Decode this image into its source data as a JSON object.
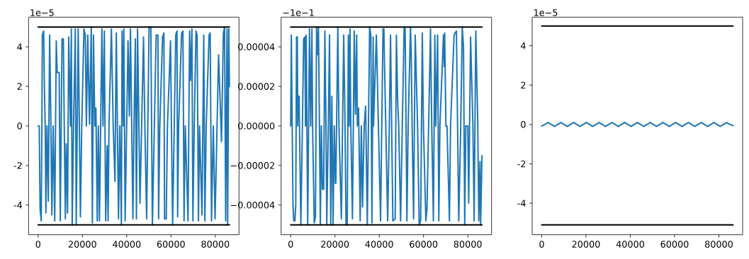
{
  "chart_data": [
    {
      "type": "line",
      "xlim": [
        -4320,
        90720
      ],
      "ylim": [
        -5.5,
        5.5
      ],
      "xticks": [
        0,
        20000,
        40000,
        60000,
        80000
      ],
      "yticks": [
        -4,
        -2,
        0,
        2,
        4
      ],
      "annotations": [
        "1e−5"
      ],
      "series": [
        {
          "color": "#1f77b4",
          "x": [
            0,
            500,
            900,
            1400,
            1700,
            1900,
            2500,
            2800,
            3200,
            3500,
            4000,
            4600,
            5200,
            5700,
            6200,
            6800,
            7500,
            8200,
            8600,
            9500,
            10000,
            10800,
            11400,
            11800,
            12300,
            12700,
            13300,
            13800,
            14600,
            15000,
            15400,
            16000,
            16800,
            17200,
            18100,
            19100,
            19700,
            20700,
            21300,
            21800,
            22400,
            23200,
            24000,
            24500,
            25000,
            25600,
            26100,
            26700,
            27200,
            27700,
            28800,
            29300,
            29900,
            30500,
            31200,
            31600,
            32000,
            33100,
            33900,
            34700,
            35300,
            36300,
            36900,
            37600,
            37900,
            38500,
            38700,
            39300,
            40600,
            41200,
            41700,
            42800,
            43300,
            43900,
            44400,
            44900,
            46000,
            47600,
            48200,
            49000,
            50100,
            50900,
            51600,
            53300,
            54100,
            54400,
            54950,
            56200,
            56800,
            57100,
            57850,
            58400,
            59800,
            60200,
            60750,
            62150,
            62700,
            63000,
            63450,
            64800,
            65400,
            65900,
            66450,
            67700,
            68400,
            68800,
            69450,
            69900,
            70500,
            71300,
            71800,
            72400,
            72900,
            74000,
            74800,
            75300,
            75900,
            77200,
            77700,
            78300,
            79100,
            79900,
            81500,
            82800,
            83650,
            84200,
            84700,
            85300,
            85600,
            86100,
            86400
          ],
          "values": [
            0,
            0,
            -4.2,
            -4.8,
            0,
            4.6,
            4.8,
            2.2,
            0,
            -4.4,
            0,
            -3.8,
            4.6,
            0.7,
            -4.5,
            0,
            -4.8,
            4.3,
            2.7,
            2.7,
            -4.8,
            4.4,
            4.4,
            0,
            -4.7,
            -0.9,
            -4.4,
            4.5,
            0,
            4.9,
            -5,
            0,
            4.9,
            -5,
            4.9,
            -4.6,
            0,
            4.9,
            4.6,
            0,
            4.6,
            0.1,
            5,
            -4.9,
            4.6,
            0,
            0.9,
            -4.8,
            0,
            -4.8,
            4.9,
            0,
            4.8,
            -4.8,
            -1,
            -4.8,
            0,
            4.9,
            0,
            -2.8,
            4.7,
            -4.7,
            0,
            -5,
            4.8,
            0,
            4.9,
            -4.8,
            4.3,
            0.5,
            4.9,
            -4.7,
            0,
            4.4,
            -4.7,
            4.9,
            -3.9,
            4.5,
            0,
            -4.7,
            5,
            5,
            -5,
            4.6,
            4.6,
            -4.7,
            0,
            4.5,
            4.7,
            -4.7,
            -4.7,
            0,
            4.3,
            0,
            -5,
            4.6,
            4.8,
            -4.6,
            0,
            4.7,
            4.8,
            -4.8,
            0,
            -4.8,
            4.8,
            2.3,
            4.9,
            -4.8,
            0,
            4.8,
            4.6,
            -4.8,
            0,
            -4.5,
            4.6,
            -4.8,
            0,
            4.6,
            4.7,
            -4.8,
            0,
            -4.7,
            3.6,
            -0.8,
            4.7,
            5,
            -4.8,
            4.9,
            -5,
            4.9,
            2.0
          ]
        },
        {
          "color": "#000000",
          "x": [
            0,
            86400
          ],
          "values": [
            5,
            5
          ]
        },
        {
          "color": "#000000",
          "x": [
            0,
            86400
          ],
          "values": [
            -5,
            -5
          ]
        }
      ]
    },
    {
      "type": "line",
      "xlim": [
        -4320,
        90720
      ],
      "ylim": [
        -5.5e-05,
        5.5e-05
      ],
      "xticks": [
        0,
        20000,
        40000,
        60000,
        80000
      ],
      "yticks": [
        {
          "value": -4e-05,
          "label": "−0.00004"
        },
        {
          "value": -2e-05,
          "label": "−0.00002"
        },
        {
          "value": 0,
          "label": "0.00000"
        },
        {
          "value": 2e-05,
          "label": "0.00002"
        },
        {
          "value": 4e-05,
          "label": "0.00004"
        }
      ],
      "annotations": [
        "−1e−1"
      ],
      "series": [
        {
          "color": "#1f77b4",
          "x": [
            0,
            300,
            650,
            1050,
            1400,
            1900,
            2300,
            2650,
            3000,
            3200,
            3500,
            3800,
            4600,
            5300,
            5850,
            6400,
            6700,
            7000,
            7700,
            8500,
            9050,
            9600,
            9900,
            10650,
            11200,
            11700,
            12250,
            12550,
            13000,
            13400,
            13850,
            14350,
            14900,
            15450,
            15950,
            16300,
            17000,
            17550,
            18100,
            18600,
            19150,
            19700,
            20200,
            20400,
            21300,
            21800,
            22900,
            23950,
            24500,
            25000,
            25550,
            26050,
            26400,
            26800,
            27150,
            27900,
            28700,
            29250,
            29800,
            30100,
            30650,
            31400,
            31900,
            32450,
            33200,
            33850,
            34600,
            35650,
            36200,
            36700,
            37250,
            37400,
            38700,
            40600,
            41700,
            42100,
            42400,
            42950,
            43800,
            44550,
            45100,
            45600,
            46150,
            47200,
            47750,
            48300,
            48800,
            49650,
            50400,
            51250,
            51700,
            52500,
            53050,
            54100,
            54450,
            54850,
            55500,
            56250,
            57300,
            58050,
            58700,
            59450,
            59950,
            61050,
            61550,
            62300,
            63150,
            63700,
            64450,
            65100,
            65500,
            66350,
            66900,
            67400,
            69000,
            69350,
            69550,
            70100,
            70600,
            71700,
            72200,
            73800,
            74850,
            75900,
            76800,
            77500,
            78050,
            78600,
            79100,
            80000,
            80400,
            81250,
            82300,
            82850,
            83600,
            84450,
            84950,
            85500,
            85800,
            86400
          ],
          "values": [
            0,
            4.6e-05,
            5e-06,
            -4e-05,
            -4.8e-05,
            -4.8e-05,
            -4e-05,
            4.5e-05,
            4.5e-05,
            0,
            1.5e-05,
            1.5e-05,
            -5e-05,
            0,
            4.4e-05,
            4.5e-05,
            0,
            4.6e-05,
            -5e-05,
            4.9e-05,
            0,
            4.9e-05,
            0,
            -4.9e-05,
            -4.6e-05,
            5e-05,
            3.6e-05,
            5e-05,
            0,
            -5e-05,
            0,
            -3.2e-05,
            -3.2e-05,
            4.8e-05,
            0,
            -5e-05,
            0,
            4.6e-05,
            -5e-05,
            1.5e-05,
            -5e-05,
            0,
            -2.9e-05,
            -2.9e-05,
            5e-05,
            0,
            -4.7e-05,
            4.6e-05,
            6e-06,
            -5e-05,
            -5e-05,
            4.6e-05,
            0,
            4.9e-05,
            0,
            -4.7e-05,
            4.8e-05,
            6e-06,
            4.6e-05,
            0,
            9e-06,
            -4.8e-05,
            0,
            -4.1e-05,
            0,
            1e-05,
            -5e-05,
            5e-05,
            4.6e-05,
            -4.9e-05,
            4.5e-05,
            0,
            4.6e-05,
            -4.8e-05,
            4.9e-05,
            4.9e-05,
            3e-05,
            0,
            -4.8e-05,
            0,
            4.6e-05,
            0,
            -4.8e-05,
            -4.7e-05,
            4.6e-05,
            1.3e-05,
            0,
            -4.8e-05,
            0,
            5e-05,
            4.9e-05,
            -4.8e-05,
            0,
            5e-05,
            3.6e-05,
            0,
            -4.7e-05,
            4.6e-05,
            0,
            -5e-05,
            -4.8e-05,
            4.7e-05,
            0,
            -4.8e-05,
            -4.2e-05,
            0,
            4.9e-05,
            0,
            -4.8e-05,
            4.6e-05,
            0,
            4.6e-05,
            -4.8e-05,
            0,
            4.6e-05,
            3e-05,
            4.7e-05,
            0,
            0,
            -4.8e-05,
            0,
            4.6e-05,
            4.8e-05,
            -4.8e-05,
            0,
            5e-05,
            4e-05,
            -5e-05,
            0,
            0,
            -3.9e-05,
            4.5e-05,
            0,
            -4.8e-05,
            4.8e-05,
            4e-06,
            -4.8e-05,
            -1.8e-05,
            -5e-05,
            -1.5e-05
          ]
        },
        {
          "color": "#000000",
          "x": [
            0,
            86400
          ],
          "values": [
            5e-05,
            5e-05
          ]
        },
        {
          "color": "#000000",
          "x": [
            0,
            86400
          ],
          "values": [
            -5e-05,
            -5e-05
          ]
        }
      ]
    },
    {
      "type": "line",
      "xlim": [
        -4320,
        90720
      ],
      "ylim": [
        -5.6,
        5.45
      ],
      "xticks": [
        0,
        20000,
        40000,
        60000,
        80000
      ],
      "yticks": [
        -4,
        -2,
        0,
        2,
        4
      ],
      "annotations": [
        "1e−5"
      ],
      "series": [
        {
          "color": "#1f77b4",
          "x": [
            0,
            1440,
            2880,
            4320,
            5760,
            7200,
            8640,
            10080,
            11520,
            12960,
            14400,
            15840,
            17280,
            18720,
            20160,
            21600,
            23040,
            24480,
            25920,
            27360,
            28800,
            30240,
            31680,
            33120,
            34560,
            36000,
            37440,
            38880,
            40320,
            41760,
            43200,
            44640,
            46080,
            47520,
            48960,
            50400,
            51840,
            53280,
            54720,
            56160,
            57600,
            59040,
            60480,
            61920,
            63360,
            64800,
            66240,
            67680,
            69120,
            70560,
            72000,
            73440,
            74880,
            76320,
            77760,
            79200,
            80640,
            82080,
            83520,
            84960,
            86400
          ],
          "values": [
            -0.08,
            0,
            0.1,
            0,
            -0.1,
            0,
            0.1,
            0,
            -0.1,
            0,
            0.1,
            0,
            -0.1,
            0,
            0.1,
            0,
            -0.1,
            0,
            0.1,
            0,
            -0.1,
            0,
            0.1,
            0,
            -0.1,
            0,
            0.1,
            0,
            -0.1,
            0,
            0.1,
            0,
            -0.1,
            0,
            0.1,
            0,
            -0.1,
            0,
            0.1,
            0,
            -0.1,
            0,
            0.1,
            0,
            -0.1,
            0,
            0.1,
            0,
            -0.1,
            0,
            0.1,
            0,
            -0.1,
            0,
            0.1,
            0,
            -0.1,
            0,
            0.1,
            0,
            -0.06
          ]
        },
        {
          "color": "#000000",
          "x": [
            0,
            86400
          ],
          "values": [
            5,
            5
          ]
        },
        {
          "color": "#000000",
          "x": [
            0,
            86400
          ],
          "values": [
            -5.1,
            -5.1
          ]
        }
      ]
    }
  ]
}
